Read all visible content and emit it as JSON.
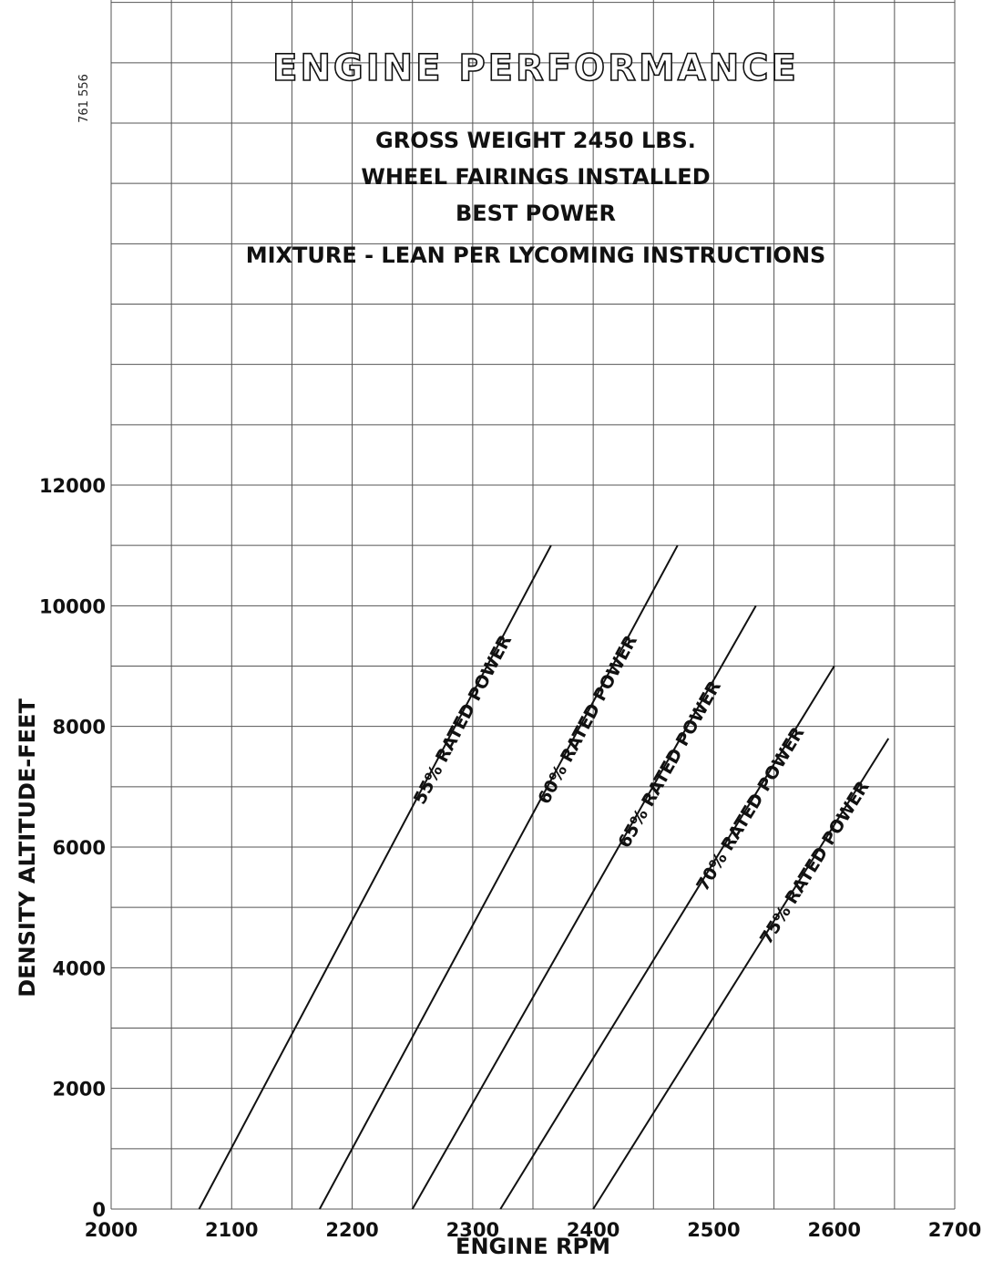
{
  "chart_data": {
    "type": "line",
    "title": "ENGINE PERFORMANCE",
    "subtitle_lines": [
      "GROSS WEIGHT 2450 LBS.",
      "WHEEL FAIRINGS INSTALLED",
      "BEST POWER",
      "MIXTURE - LEAN PER LYCOMING INSTRUCTIONS"
    ],
    "figure_code": "761 556",
    "xlabel": "ENGINE RPM",
    "ylabel": "DENSITY ALTITUDE-FEET",
    "xlim": [
      2000,
      2700
    ],
    "ylim": [
      0,
      12000
    ],
    "x_ticks": [
      2000,
      2100,
      2200,
      2300,
      2400,
      2500,
      2600,
      2700
    ],
    "y_ticks": [
      0,
      2000,
      4000,
      6000,
      8000,
      10000,
      12000
    ],
    "grid": true,
    "series": [
      {
        "name": "55% RATED POWER",
        "x": [
          2073,
          2365
        ],
        "y": [
          0,
          11000
        ]
      },
      {
        "name": "60% RATED POWER",
        "x": [
          2173,
          2470
        ],
        "y": [
          0,
          11000
        ]
      },
      {
        "name": "65% RATED POWER",
        "x": [
          2250,
          2535
        ],
        "y": [
          0,
          10000
        ]
      },
      {
        "name": "70% RATED POWER",
        "x": [
          2323,
          2600
        ],
        "y": [
          0,
          9000
        ]
      },
      {
        "name": "75% RATED POWER",
        "x": [
          2400,
          2645
        ],
        "y": [
          0,
          7800
        ]
      }
    ]
  }
}
